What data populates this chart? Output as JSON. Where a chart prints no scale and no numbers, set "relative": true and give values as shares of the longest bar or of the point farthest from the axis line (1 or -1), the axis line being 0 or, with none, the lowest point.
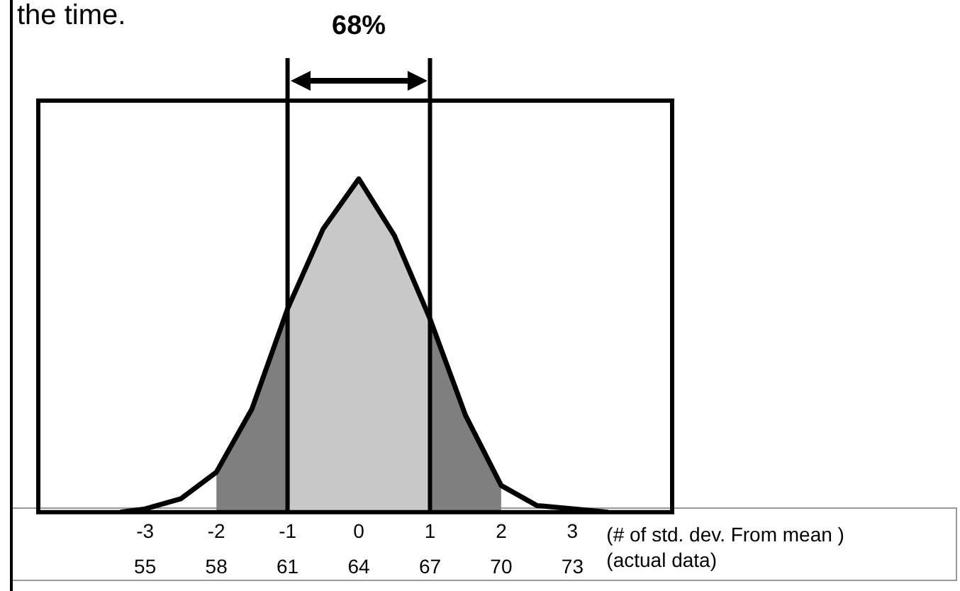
{
  "chart_data": {
    "type": "area",
    "relative": true,
    "xlim": [
      -4.5,
      4.4
    ],
    "xticks": [
      -3,
      -2,
      -1,
      0,
      1,
      2,
      3
    ],
    "xlabel": "(# of std. dev. From mean )",
    "x2lim": [
      50.5,
      77.2
    ],
    "x2ticks": [
      55,
      58,
      61,
      64,
      67,
      70,
      73
    ],
    "x2label": "(actual data)",
    "series": [
      {
        "color": "#7f7f7f",
        "x": [
          -2,
          -1.5,
          -1
        ],
        "values": [
          0.12,
          0.31,
          0.61
        ]
      },
      {
        "color": "#c8c8c8",
        "x": [
          -1,
          -0.5,
          0,
          0.5,
          1
        ],
        "values": [
          0.61,
          0.85,
          1,
          0.83,
          0.58
        ]
      },
      {
        "color": "#7f7f7f",
        "x": [
          1,
          1.5,
          2
        ],
        "values": [
          0.58,
          0.29,
          0.08
        ]
      },
      {
        "type": "line",
        "color": "#000000",
        "x": [
          -3.35,
          -3,
          -2.5,
          -2,
          -1.5,
          -1,
          -0.5,
          0,
          0.5,
          1,
          1.5,
          2,
          2.5,
          3,
          3.5
        ],
        "values": [
          0,
          0.01,
          0.04,
          0.12,
          0.31,
          0.61,
          0.85,
          1,
          0.83,
          0.58,
          0.29,
          0.08,
          0.02,
          0.01,
          0
        ]
      }
    ],
    "ref_lines": [
      {
        "axis": "x",
        "value": -1
      },
      {
        "axis": "x",
        "value": 1
      }
    ],
    "annotations": [
      "the time.",
      "68%"
    ],
    "grid": false,
    "legend": false,
    "marker": "none",
    "line_style": "solid"
  }
}
